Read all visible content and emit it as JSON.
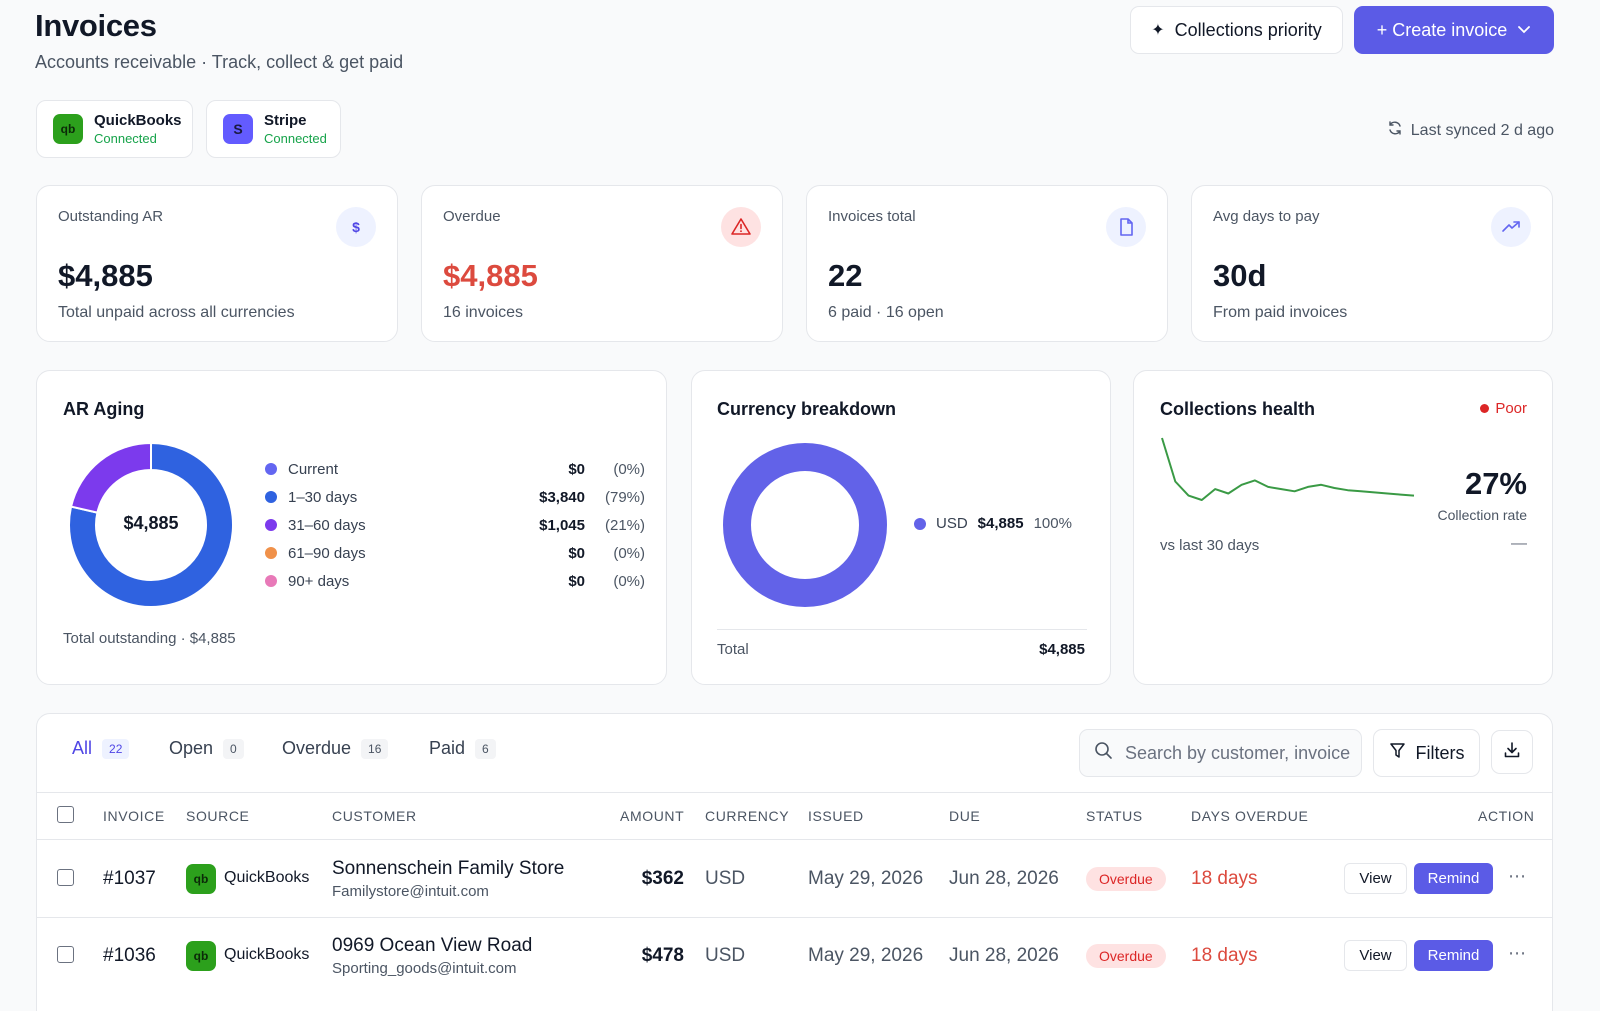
{
  "header": {
    "title": "Invoices",
    "subtitle": "Accounts receivable · Track, collect & get paid",
    "collections_priority_label": "Collections priority",
    "create_invoice_label": "+ Create invoice"
  },
  "integrations": [
    {
      "name": "QuickBooks",
      "status": "Connected",
      "logo": "qb"
    },
    {
      "name": "Stripe",
      "status": "Connected",
      "logo": "S"
    }
  ],
  "sync": {
    "text": "Last synced 2 d ago"
  },
  "kpis": [
    {
      "label": "Outstanding AR",
      "value": "$4,885",
      "sub": "Total unpaid across all currencies",
      "icon": "dollar-icon"
    },
    {
      "label": "Overdue",
      "value": "$4,885",
      "sub": "16 invoices",
      "icon": "warning-icon"
    },
    {
      "label": "Invoices total",
      "value": "22",
      "sub": "6 paid · 16 open",
      "icon": "document-icon"
    },
    {
      "label": "Avg days to pay",
      "value": "30d",
      "sub": "From paid invoices",
      "icon": "trend-up-icon"
    }
  ],
  "ar_aging": {
    "title": "AR Aging",
    "center_value": "$4,885",
    "footer": "Total outstanding · $4,885",
    "buckets": [
      {
        "label": "Current",
        "amount": "$0",
        "pct": "(0%)",
        "value": 0,
        "color": "#6366f1"
      },
      {
        "label": "1–30 days",
        "amount": "$3,840",
        "pct": "(79%)",
        "value": 3840,
        "color": "#2f62e0"
      },
      {
        "label": "31–60 days",
        "amount": "$1,045",
        "pct": "(21%)",
        "value": 1045,
        "color": "#7c3aed"
      },
      {
        "label": "61–90 days",
        "amount": "$0",
        "pct": "(0%)",
        "value": 0,
        "color": "#f0914a"
      },
      {
        "label": "90+ days",
        "amount": "$0",
        "pct": "(0%)",
        "value": 0,
        "color": "#e879b8"
      }
    ]
  },
  "currency": {
    "title": "Currency breakdown",
    "items": [
      {
        "code": "USD",
        "amount": "$4,885",
        "pct": "100%",
        "value": 4885,
        "color": "#6262e8"
      }
    ],
    "total_label": "Total",
    "total_value": "$4,885"
  },
  "collections": {
    "title": "Collections health",
    "status": "Poor",
    "status_color": "#dc2626",
    "rate": "27%",
    "rate_label": "Collection rate",
    "compare_label": "vs last 30 days",
    "compare_value": "—",
    "sparkline": [
      95,
      55,
      42,
      38,
      48,
      44,
      52,
      56,
      50,
      48,
      46,
      50,
      52,
      49,
      47,
      46,
      45,
      44,
      43,
      42
    ]
  },
  "tabs": [
    {
      "label": "All",
      "count": "22",
      "active": true
    },
    {
      "label": "Open",
      "count": "0",
      "active": false
    },
    {
      "label": "Overdue",
      "count": "16",
      "active": false
    },
    {
      "label": "Paid",
      "count": "6",
      "active": false
    }
  ],
  "search": {
    "placeholder": "Search by customer, invoice #"
  },
  "filters_label": "Filters",
  "table": {
    "columns": [
      "INVOICE",
      "SOURCE",
      "CUSTOMER",
      "AMOUNT",
      "CURRENCY",
      "ISSUED",
      "DUE",
      "STATUS",
      "DAYS OVERDUE",
      "ACTION"
    ],
    "rows": [
      {
        "invoice": "#1037",
        "source": "QuickBooks",
        "customer": "Sonnenschein Family Store",
        "email": "Familystore@intuit.com",
        "amount": "$362",
        "currency": "USD",
        "issued": "May 29, 2026",
        "due": "Jun 28, 2026",
        "status": "Overdue",
        "days_overdue": "18 days",
        "view_label": "View",
        "remind_label": "Remind"
      },
      {
        "invoice": "#1036",
        "source": "QuickBooks",
        "customer": "0969 Ocean View Road",
        "email": "Sporting_goods@intuit.com",
        "amount": "$478",
        "currency": "USD",
        "issued": "May 29, 2026",
        "due": "Jun 28, 2026",
        "status": "Overdue",
        "days_overdue": "18 days",
        "view_label": "View",
        "remind_label": "Remind"
      }
    ]
  }
}
